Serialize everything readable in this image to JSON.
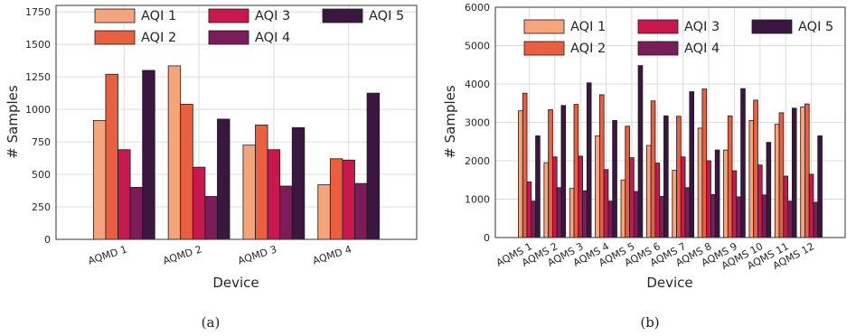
{
  "colors": {
    "AQI 1": "#f6a47c",
    "AQI 2": "#ea5f3f",
    "AQI 3": "#c8194f",
    "AQI 4": "#7c1d5a",
    "AQI 5": "#3b1641"
  },
  "chart_data": [
    {
      "type": "bar",
      "caption": "(a)",
      "xlabel": "Device",
      "ylabel": "# Samples",
      "ylim": [
        0,
        1800
      ],
      "yticks": [
        0,
        250,
        500,
        750,
        1000,
        1250,
        1500,
        1750
      ],
      "grid": true,
      "legend_position": "top-center",
      "categories": [
        "AQMD 1",
        "AQMD 2",
        "AQMD 3",
        "AQMD 4"
      ],
      "series": [
        {
          "name": "AQI 1",
          "values": [
            915,
            1335,
            725,
            420
          ]
        },
        {
          "name": "AQI 2",
          "values": [
            1270,
            1040,
            880,
            620
          ]
        },
        {
          "name": "AQI 3",
          "values": [
            690,
            555,
            690,
            610
          ]
        },
        {
          "name": "AQI 4",
          "values": [
            400,
            330,
            410,
            430
          ]
        },
        {
          "name": "AQI 5",
          "values": [
            1300,
            925,
            860,
            1125
          ]
        }
      ]
    },
    {
      "type": "bar",
      "caption": "(b)",
      "xlabel": "Device",
      "ylabel": "# Samples",
      "ylim": [
        0,
        6000
      ],
      "yticks": [
        0,
        1000,
        2000,
        3000,
        4000,
        5000,
        6000
      ],
      "grid": true,
      "legend_position": "top-center",
      "categories": [
        "AQMS 1",
        "AQMS 2",
        "AQMS 3",
        "AQMS 4",
        "AQMS 5",
        "AQMS 6",
        "AQMS 7",
        "AQMS 8",
        "AQMS 9",
        "AQMS 10",
        "AQMS 11",
        "AQMS 12"
      ],
      "series": [
        {
          "name": "AQI 1",
          "values": [
            3300,
            1950,
            1280,
            2650,
            1500,
            2400,
            1750,
            2850,
            2280,
            3050,
            2950,
            3400
          ]
        },
        {
          "name": "AQI 2",
          "values": [
            3760,
            3330,
            3470,
            3720,
            2900,
            3560,
            3160,
            3870,
            3170,
            3580,
            3250,
            3480
          ]
        },
        {
          "name": "AQI 3",
          "values": [
            1450,
            2100,
            2120,
            1770,
            2080,
            1940,
            2100,
            2000,
            1740,
            1890,
            1600,
            1650
          ]
        },
        {
          "name": "AQI 4",
          "values": [
            950,
            1300,
            1220,
            950,
            1200,
            1070,
            1300,
            1120,
            1060,
            1110,
            950,
            920
          ]
        },
        {
          "name": "AQI 5",
          "values": [
            2650,
            3440,
            4030,
            3050,
            4480,
            3170,
            3800,
            2280,
            3880,
            2480,
            3370,
            2650
          ]
        }
      ]
    }
  ]
}
